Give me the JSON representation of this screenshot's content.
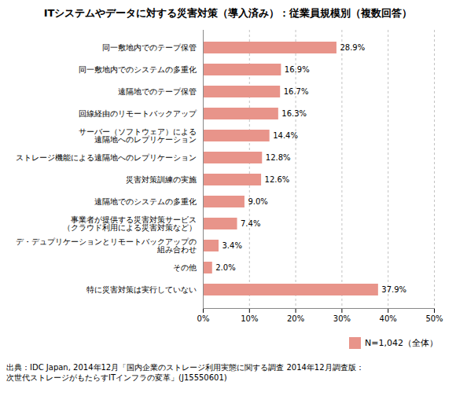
{
  "chart_data": {
    "type": "bar",
    "orientation": "horizontal",
    "title": "ITシステムやデータに対する災害対策（導入済み）：従業員規模別（複数回答）",
    "categories": [
      "同一敷地内でのテープ保管",
      "同一敷地内でのシステムの多重化",
      "遠隔地でのテープ保管",
      "回線経由のリモートバックアップ",
      "サーバー（ソフトウェア）による\n遠隔地へのレプリケーション",
      "ストレージ機能による遠隔地へのレプリケーション",
      "災害対策訓練の実施",
      "遠隔地でのシステムの多重化",
      "事業者が提供する災害対策サービス\n（クラウド利用による災害対策など）",
      "デ・デュプリケーションとリモートバックアップの\n組み合わせ",
      "その他",
      "特に災害対策は実行していない"
    ],
    "series": [
      {
        "name": "N=1,042（全体）",
        "color": "#e8948a",
        "values": [
          28.9,
          16.9,
          16.7,
          16.3,
          14.4,
          12.8,
          12.6,
          9.0,
          7.4,
          3.4,
          2.0,
          37.9
        ],
        "value_labels": [
          "28.9%",
          "16.9%",
          "16.7%",
          "16.3%",
          "14.4%",
          "12.8%",
          "12.6%",
          "9.0%",
          "7.4%",
          "3.4%",
          "2.0%",
          "37.9%"
        ]
      }
    ],
    "data_labels": true,
    "xlim": [
      0,
      50
    ],
    "xticks": [
      {
        "value": 0,
        "label": "0%"
      },
      {
        "value": 10,
        "label": "10%"
      },
      {
        "value": 20,
        "label": "20%"
      },
      {
        "value": 30,
        "label": "30%"
      },
      {
        "value": 40,
        "label": "40%"
      },
      {
        "value": 50,
        "label": "50%"
      }
    ],
    "grid": true,
    "legend": "lower right",
    "annotations": [
      "出典：IDC Japan, 2014年12月「国内企業のストレージ利用実態に関する調査 2014年12月調査版：",
      "次世代ストレージがもたらすITインフラの変革」(J15550601)"
    ]
  }
}
